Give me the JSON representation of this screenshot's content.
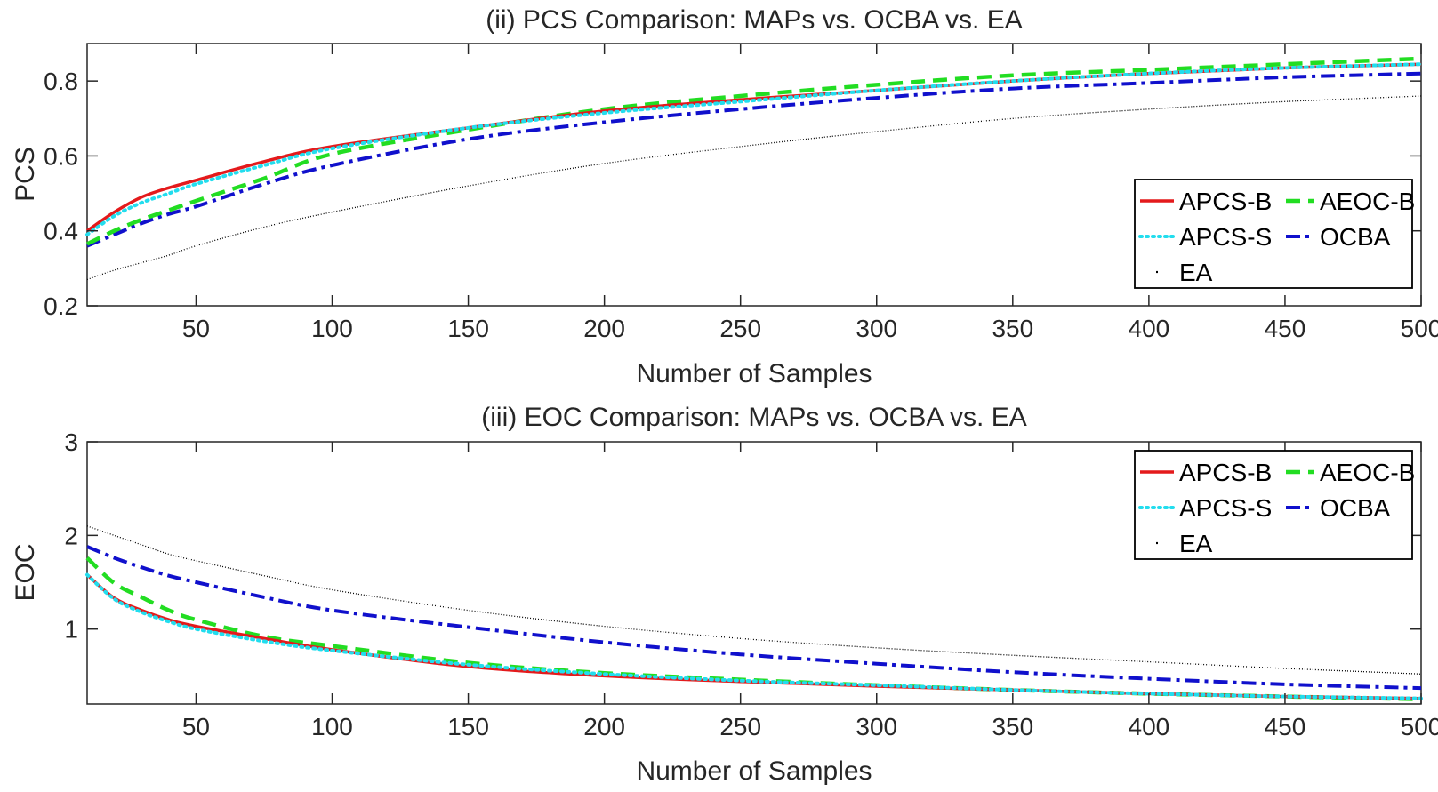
{
  "chart_data": [
    {
      "type": "line",
      "title": "(ii) PCS Comparison: MAPs vs. OCBA vs. EA",
      "xlabel": "Number of Samples",
      "ylabel": "PCS",
      "xlim": [
        10,
        500
      ],
      "ylim": [
        0.2,
        0.9
      ],
      "xticks": [
        50,
        100,
        150,
        200,
        250,
        300,
        350,
        400,
        450,
        500
      ],
      "yticks": [
        0.2,
        0.4,
        0.6,
        0.8
      ],
      "ytick_labels": [
        "0.2",
        "0.4",
        "0.6",
        "0.8"
      ],
      "legend_position": "bottom-right",
      "x": [
        10,
        20,
        30,
        40,
        50,
        75,
        100,
        150,
        200,
        250,
        300,
        350,
        400,
        450,
        500
      ],
      "series": [
        {
          "name": "APCS-B",
          "color": "#e41a1c",
          "style": "solid",
          "values": [
            0.4,
            0.45,
            0.49,
            0.515,
            0.535,
            0.585,
            0.625,
            0.675,
            0.72,
            0.75,
            0.775,
            0.8,
            0.82,
            0.835,
            0.845
          ]
        },
        {
          "name": "AEOC-B",
          "color": "#22dd22",
          "style": "dashed",
          "values": [
            0.365,
            0.4,
            0.43,
            0.455,
            0.48,
            0.54,
            0.605,
            0.67,
            0.725,
            0.76,
            0.79,
            0.815,
            0.83,
            0.845,
            0.86
          ]
        },
        {
          "name": "APCS-S",
          "color": "#22ddee",
          "style": "dotted",
          "values": [
            0.39,
            0.44,
            0.475,
            0.5,
            0.525,
            0.575,
            0.62,
            0.675,
            0.715,
            0.745,
            0.775,
            0.8,
            0.82,
            0.835,
            0.845
          ]
        },
        {
          "name": "OCBA",
          "color": "#1010cc",
          "style": "dashdot",
          "values": [
            0.36,
            0.39,
            0.42,
            0.445,
            0.465,
            0.525,
            0.575,
            0.645,
            0.69,
            0.725,
            0.755,
            0.78,
            0.795,
            0.81,
            0.82
          ]
        },
        {
          "name": "EA",
          "color": "#000000",
          "style": "fine",
          "values": [
            0.27,
            0.295,
            0.315,
            0.335,
            0.36,
            0.41,
            0.45,
            0.52,
            0.58,
            0.625,
            0.665,
            0.7,
            0.725,
            0.745,
            0.76
          ]
        }
      ]
    },
    {
      "type": "line",
      "title": "(iii) EOC Comparison: MAPs vs. OCBA vs. EA",
      "xlabel": "Number of Samples",
      "ylabel": "EOC",
      "xlim": [
        10,
        500
      ],
      "ylim": [
        0.2,
        3
      ],
      "xticks": [
        50,
        100,
        150,
        200,
        250,
        300,
        350,
        400,
        450,
        500
      ],
      "yticks": [
        1,
        2,
        3
      ],
      "ytick_labels": [
        "1",
        "2",
        "3"
      ],
      "legend_position": "top-right",
      "x": [
        10,
        20,
        30,
        40,
        50,
        75,
        100,
        150,
        200,
        250,
        300,
        350,
        400,
        450,
        500
      ],
      "series": [
        {
          "name": "APCS-B",
          "color": "#e41a1c",
          "style": "solid",
          "values": [
            1.58,
            1.33,
            1.2,
            1.1,
            1.03,
            0.9,
            0.78,
            0.6,
            0.5,
            0.44,
            0.39,
            0.35,
            0.31,
            0.28,
            0.26
          ]
        },
        {
          "name": "AEOC-B",
          "color": "#22dd22",
          "style": "dashed",
          "values": [
            1.76,
            1.49,
            1.34,
            1.2,
            1.1,
            0.92,
            0.82,
            0.64,
            0.53,
            0.46,
            0.4,
            0.35,
            0.31,
            0.28,
            0.25
          ]
        },
        {
          "name": "APCS-S",
          "color": "#22ddee",
          "style": "dotted",
          "values": [
            1.58,
            1.32,
            1.18,
            1.08,
            1.0,
            0.87,
            0.77,
            0.62,
            0.52,
            0.45,
            0.4,
            0.35,
            0.31,
            0.28,
            0.26
          ]
        },
        {
          "name": "OCBA",
          "color": "#1010cc",
          "style": "dashdot",
          "values": [
            1.88,
            1.76,
            1.66,
            1.57,
            1.5,
            1.34,
            1.2,
            1.02,
            0.86,
            0.73,
            0.63,
            0.54,
            0.47,
            0.41,
            0.37
          ]
        },
        {
          "name": "EA",
          "color": "#000000",
          "style": "fine",
          "values": [
            2.1,
            2.0,
            1.9,
            1.8,
            1.73,
            1.57,
            1.42,
            1.2,
            1.03,
            0.9,
            0.8,
            0.72,
            0.65,
            0.58,
            0.52
          ]
        }
      ]
    }
  ]
}
